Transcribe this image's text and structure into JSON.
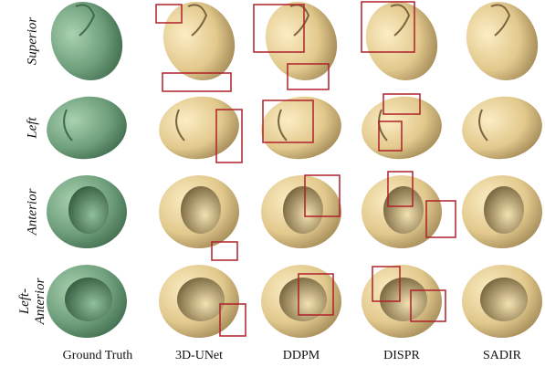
{
  "figure": {
    "row_labels": [
      [
        "Superior"
      ],
      [
        "Left"
      ],
      [
        "Anterior"
      ],
      [
        "Left-",
        "Anterior"
      ]
    ],
    "column_labels": [
      "Ground Truth",
      "3D-UNet",
      "DDPM",
      "DISPR",
      "SADIR"
    ]
  }
}
